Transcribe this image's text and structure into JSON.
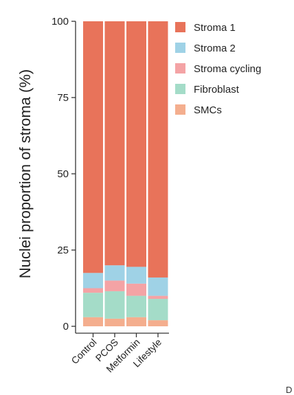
{
  "chart_data": {
    "type": "bar",
    "stacked": true,
    "ylabel": "Nuclei proportion of stroma (%)",
    "xlabel": "",
    "ylim": [
      0,
      100
    ],
    "yticks": [
      "0",
      "25",
      "50",
      "75",
      "100"
    ],
    "categories": [
      "Control",
      "PCOS",
      "Metformin",
      "Lifestyle"
    ],
    "legend_position": "right",
    "grid": false,
    "series": [
      {
        "name": "SMCs",
        "color": "#F4AE8E",
        "values": [
          3,
          2.5,
          3,
          2
        ]
      },
      {
        "name": "Fibroblast",
        "color": "#A4DCC8",
        "values": [
          8,
          9,
          7,
          7
        ]
      },
      {
        "name": "Stroma cycling",
        "color": "#F4A3A5",
        "values": [
          1.5,
          3.5,
          4,
          1
        ]
      },
      {
        "name": "Stroma 2",
        "color": "#9FD2E6",
        "values": [
          5,
          5,
          5.5,
          6
        ]
      },
      {
        "name": "Stroma 1",
        "color": "#E8735A",
        "values": [
          82.5,
          80,
          80.5,
          84
        ]
      }
    ],
    "legend_order": [
      "Stroma 1",
      "Stroma 2",
      "Stroma cycling",
      "Fibroblast",
      "SMCs"
    ]
  },
  "corner_text": "D"
}
